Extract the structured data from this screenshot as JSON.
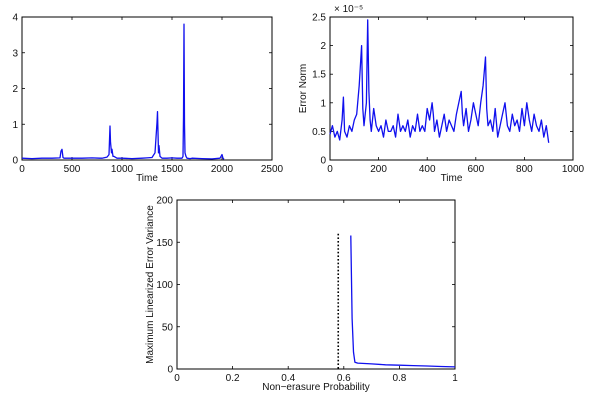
{
  "chart_data": [
    {
      "type": "line",
      "xlabel": "Time",
      "ylabel": "",
      "xlim": [
        0,
        2500
      ],
      "ylim": [
        0,
        4
      ],
      "xticks": [
        0,
        500,
        1000,
        1500,
        2000,
        2500
      ],
      "xtick_labels": [
        "0",
        "500",
        "1000",
        "1500",
        "2000",
        "2500"
      ],
      "yticks": [
        0,
        1,
        2,
        3,
        4
      ],
      "ytick_labels": [
        "0",
        "1",
        "2",
        "3",
        "4"
      ],
      "grid": false,
      "color": "#1010ee",
      "series": [
        {
          "x": [
            0,
            100,
            200,
            300,
            380,
            390,
            400,
            410,
            420,
            500,
            600,
            700,
            780,
            800,
            850,
            870,
            880,
            885,
            895,
            900,
            910,
            920,
            950,
            1000,
            1100,
            1200,
            1250,
            1300,
            1330,
            1350,
            1355,
            1365,
            1370,
            1380,
            1400,
            1450,
            1500,
            1550,
            1600,
            1610,
            1615,
            1620,
            1625,
            1630,
            1640,
            1650,
            1680,
            1700,
            1800,
            1900,
            1980,
            1990,
            2000,
            2010,
            2020
          ],
          "y": [
            0.05,
            0.04,
            0.05,
            0.05,
            0.06,
            0.25,
            0.3,
            0.07,
            0.05,
            0.05,
            0.05,
            0.06,
            0.05,
            0.05,
            0.08,
            0.15,
            0.95,
            0.5,
            0.2,
            0.3,
            0.1,
            0.1,
            0.05,
            0.05,
            0.04,
            0.05,
            0.06,
            0.07,
            0.2,
            1.05,
            1.35,
            0.2,
            0.4,
            0.1,
            0.05,
            0.05,
            0.06,
            0.05,
            0.05,
            0.1,
            1.2,
            3.8,
            1.0,
            0.2,
            0.1,
            0.05,
            0.04,
            0.05,
            0.04,
            0.03,
            0.05,
            0.1,
            0.15,
            0.05,
            0.02
          ]
        }
      ]
    },
    {
      "type": "line",
      "xlabel": "Time",
      "ylabel": "Error Norm",
      "xlim": [
        0,
        1000
      ],
      "ylim": [
        0,
        2.5
      ],
      "multiplier_label": "× 10⁻⁵",
      "xticks": [
        0,
        200,
        400,
        600,
        800,
        1000
      ],
      "xtick_labels": [
        "0",
        "200",
        "400",
        "600",
        "800",
        "1000"
      ],
      "yticks": [
        0,
        0.5,
        1,
        1.5,
        2,
        2.5
      ],
      "ytick_labels": [
        "0",
        "0.5",
        "1",
        "1.5",
        "2",
        "2.5"
      ],
      "grid": false,
      "color": "#1010ee",
      "series": [
        {
          "x": [
            0,
            10,
            20,
            30,
            40,
            50,
            55,
            60,
            70,
            80,
            90,
            100,
            110,
            120,
            130,
            135,
            140,
            150,
            155,
            160,
            165,
            170,
            180,
            190,
            200,
            210,
            220,
            230,
            240,
            250,
            260,
            270,
            280,
            290,
            300,
            310,
            320,
            330,
            340,
            350,
            360,
            370,
            380,
            390,
            400,
            410,
            420,
            425,
            430,
            440,
            450,
            460,
            470,
            480,
            490,
            500,
            510,
            520,
            530,
            540,
            545,
            550,
            560,
            570,
            580,
            590,
            600,
            610,
            620,
            630,
            640,
            645,
            650,
            660,
            670,
            680,
            690,
            700,
            710,
            720,
            730,
            740,
            750,
            760,
            770,
            780,
            790,
            800,
            810,
            820,
            830,
            840,
            850,
            860,
            870,
            880,
            890,
            900
          ],
          "y": [
            0.45,
            0.6,
            0.4,
            0.5,
            0.35,
            0.7,
            1.1,
            0.5,
            0.4,
            0.6,
            0.5,
            0.7,
            0.8,
            1.3,
            2.0,
            0.9,
            0.6,
            1.0,
            2.45,
            1.2,
            0.7,
            0.5,
            0.9,
            0.6,
            0.5,
            0.6,
            0.4,
            0.7,
            0.5,
            0.5,
            0.6,
            0.4,
            0.8,
            0.5,
            0.6,
            0.5,
            0.7,
            0.4,
            0.6,
            0.5,
            0.8,
            0.5,
            0.6,
            0.5,
            0.9,
            0.7,
            1.0,
            0.8,
            0.5,
            0.7,
            0.4,
            0.6,
            0.8,
            0.5,
            0.7,
            0.6,
            0.5,
            0.8,
            1.0,
            1.2,
            0.8,
            0.6,
            0.9,
            0.5,
            0.7,
            1.0,
            0.8,
            0.6,
            1.0,
            1.3,
            1.8,
            0.9,
            0.6,
            0.7,
            0.5,
            0.9,
            0.4,
            0.6,
            0.8,
            1.0,
            0.6,
            0.5,
            0.8,
            0.6,
            0.7,
            0.5,
            0.9,
            0.6,
            1.0,
            0.7,
            0.5,
            0.8,
            0.6,
            0.5,
            0.7,
            0.4,
            0.6,
            0.3
          ]
        }
      ]
    },
    {
      "type": "line",
      "xlabel": "Non−erasure Probability",
      "ylabel": "Maximum Linearized Error Variance",
      "xlim": [
        0,
        1
      ],
      "ylim": [
        0,
        200
      ],
      "xticks": [
        0,
        0.2,
        0.4,
        0.6,
        0.8,
        1
      ],
      "xtick_labels": [
        "0",
        "0.2",
        "0.4",
        "0.6",
        "0.8",
        "1"
      ],
      "yticks": [
        0,
        50,
        100,
        150,
        200
      ],
      "ytick_labels": [
        "0",
        "50",
        "100",
        "150",
        "200"
      ],
      "grid": false,
      "color": "#1010ee",
      "critical_probability": 0.58,
      "series": [
        {
          "x": [
            0.625,
            0.63,
            0.635,
            0.64,
            0.65,
            0.7,
            0.75,
            0.8,
            0.85,
            0.9,
            0.95,
            1.0
          ],
          "y": [
            158,
            60,
            20,
            8,
            7,
            6,
            5,
            4.5,
            4,
            3.5,
            3,
            2.5
          ]
        }
      ]
    }
  ]
}
